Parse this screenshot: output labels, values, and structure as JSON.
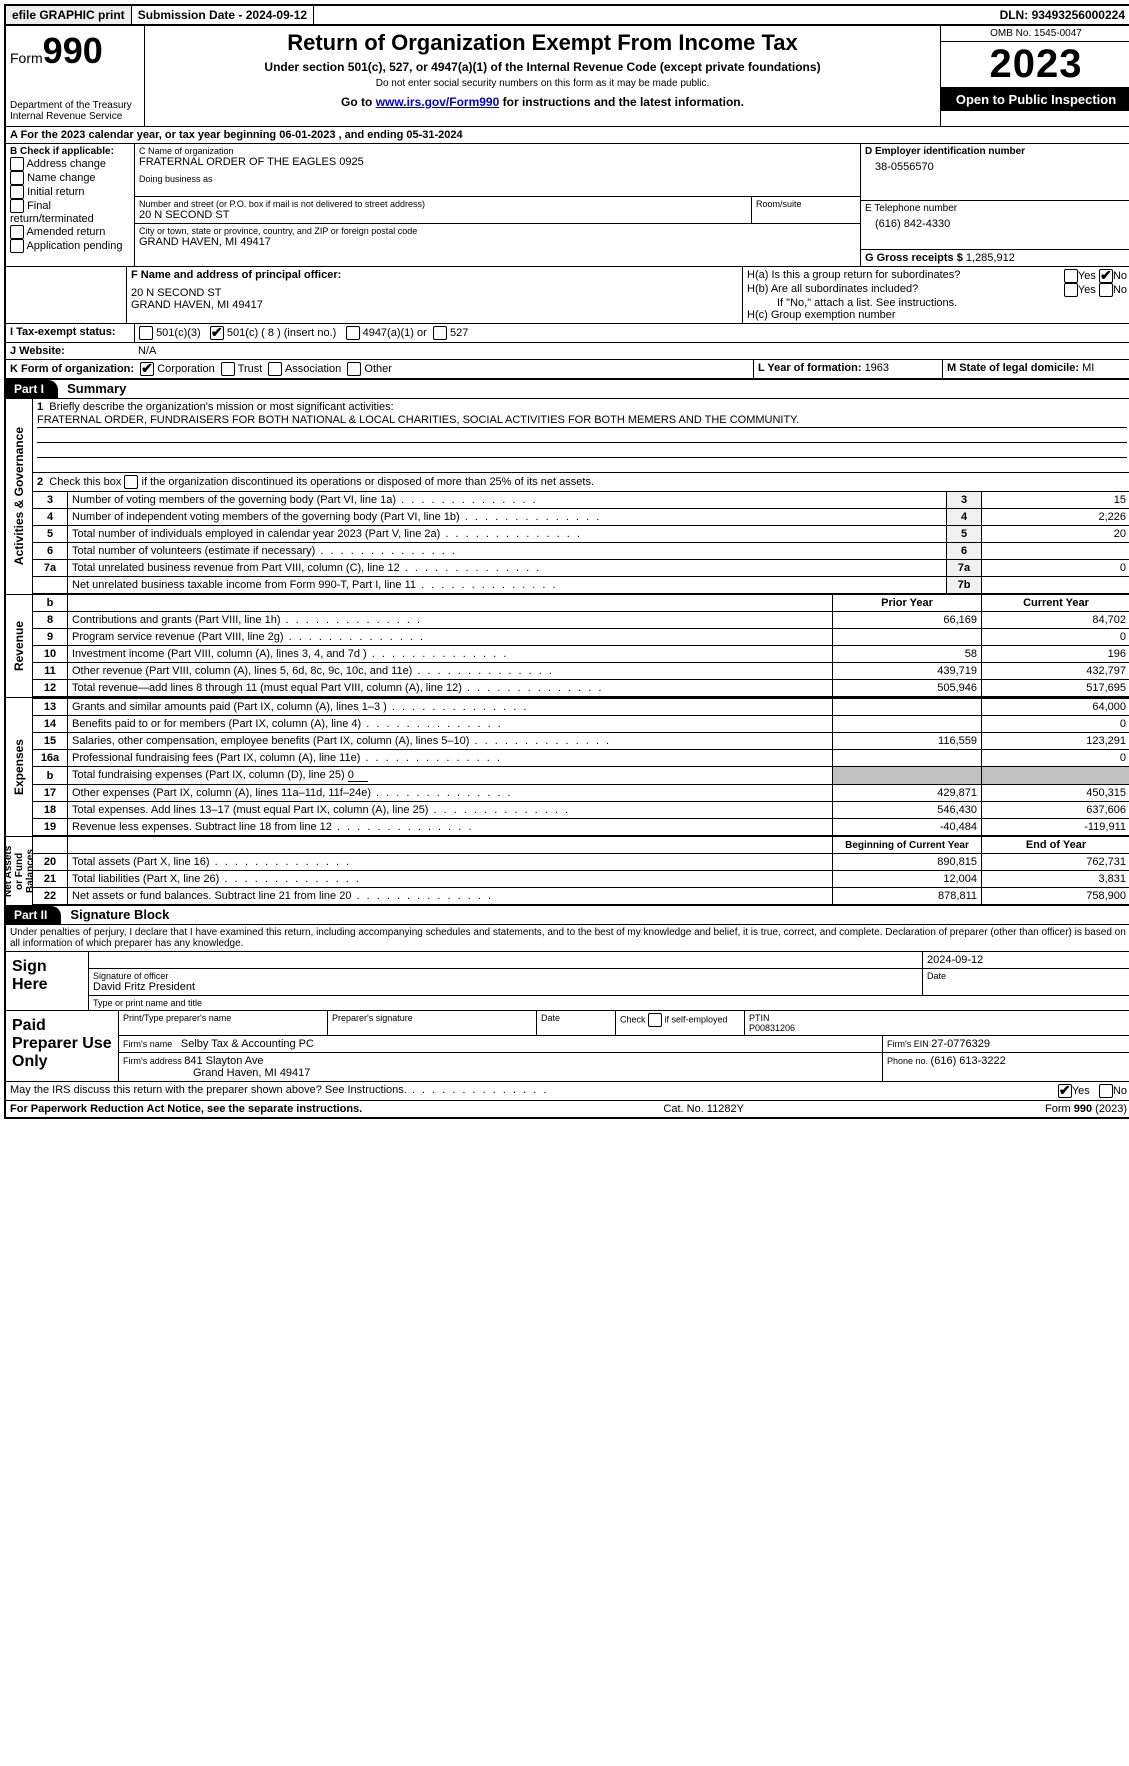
{
  "topbar": {
    "efile": "efile GRAPHIC print",
    "submission_label": "Submission Date - ",
    "submission_date": "2024-09-12",
    "dln_label": "DLN: ",
    "dln": "93493256000224"
  },
  "header": {
    "form_prefix": "Form",
    "form_number": "990",
    "dept1": "Department of the Treasury",
    "dept2": "Internal Revenue Service",
    "title": "Return of Organization Exempt From Income Tax",
    "subtitle": "Under section 501(c), 527, or 4947(a)(1) of the Internal Revenue Code (except private foundations)",
    "warn": "Do not enter social security numbers on this form as it may be made public.",
    "goto_pre": "Go to ",
    "goto_link": "www.irs.gov/Form990",
    "goto_post": " for instructions and the latest information.",
    "omb_label": "OMB No. ",
    "omb": "1545-0047",
    "year": "2023",
    "open": "Open to Public Inspection"
  },
  "sectionA": {
    "line": "A For the 2023 calendar year, or tax year beginning ",
    "begin": "06-01-2023",
    "mid": " , and ending ",
    "end": "05-31-2024"
  },
  "boxB": {
    "label": "B Check if applicable:",
    "opts": [
      "Address change",
      "Name change",
      "Initial return",
      "Final return/terminated",
      "Amended return",
      "Application pending"
    ]
  },
  "boxC": {
    "name_label": "C Name of organization",
    "name": "FRATERNAL ORDER OF THE EAGLES 0925",
    "dba_label": "Doing business as",
    "addr_label": "Number and street (or P.O. box if mail is not delivered to street address)",
    "room_label": "Room/suite",
    "addr": "20 N SECOND ST",
    "city_label": "City or town, state or province, country, and ZIP or foreign postal code",
    "city": "GRAND HAVEN, MI  49417"
  },
  "boxD": {
    "label": "D Employer identification number",
    "value": "38-0556570"
  },
  "boxE": {
    "label": "E Telephone number",
    "value": "(616) 842-4330"
  },
  "boxG": {
    "label": "G Gross receipts $ ",
    "value": "1,285,912"
  },
  "boxF": {
    "label": "F  Name and address of principal officer:",
    "line1": "20 N SECOND ST",
    "line2": "GRAND HAVEN, MI  49417"
  },
  "boxH": {
    "a": "H(a)  Is this a group return for subordinates?",
    "b": "H(b)  Are all subordinates included?",
    "bnote": "If \"No,\" attach a list. See instructions.",
    "c": "H(c)  Group exemption number ",
    "yes": "Yes",
    "no": "No"
  },
  "boxI": {
    "label": "I  Tax-exempt status:",
    "o1": "501(c)(3)",
    "o2": "501(c) ( 8 ) (insert no.)",
    "o3": "4947(a)(1) or",
    "o4": "527"
  },
  "boxJ": {
    "label": "J  Website:",
    "value": "N/A"
  },
  "boxK": {
    "label": "K Form of organization:",
    "opts": [
      "Corporation",
      "Trust",
      "Association",
      "Other"
    ]
  },
  "boxL": {
    "label": "L Year of formation: ",
    "value": "1963"
  },
  "boxM": {
    "label": "M State of legal domicile: ",
    "value": "MI"
  },
  "part1": {
    "hdr": "Part I",
    "title": "Summary",
    "side1": "Activities & Governance",
    "side2": "Revenue",
    "side3": "Expenses",
    "side4": "Net Assets or Fund Balances",
    "q1": "Briefly describe the organization's mission or most significant activities:",
    "q1ans": "FRATERNAL ORDER, FUNDRAISERS FOR BOTH NATIONAL & LOCAL CHARITIES, SOCIAL ACTIVITIES FOR BOTH MEMERS AND THE COMMUNITY.",
    "q2a": "Check this box ",
    "q2b": " if the organization discontinued its operations or disposed of more than 25% of its net assets.",
    "rows_gov": [
      {
        "n": "3",
        "t": "Number of voting members of the governing body (Part VI, line 1a)",
        "l": "3",
        "v": "15"
      },
      {
        "n": "4",
        "t": "Number of independent voting members of the governing body (Part VI, line 1b)",
        "l": "4",
        "v": "2,226"
      },
      {
        "n": "5",
        "t": "Total number of individuals employed in calendar year 2023 (Part V, line 2a)",
        "l": "5",
        "v": "20"
      },
      {
        "n": "6",
        "t": "Total number of volunteers (estimate if necessary)",
        "l": "6",
        "v": ""
      },
      {
        "n": "7a",
        "t": "Total unrelated business revenue from Part VIII, column (C), line 12",
        "l": "7a",
        "v": "0"
      },
      {
        "n": "",
        "t": "Net unrelated business taxable income from Form 990-T, Part I, line 11",
        "l": "7b",
        "v": ""
      }
    ],
    "col_b": "b",
    "col_prior": "Prior Year",
    "col_curr": "Current Year",
    "rows_rev": [
      {
        "n": "8",
        "t": "Contributions and grants (Part VIII, line 1h)",
        "p": "66,169",
        "c": "84,702"
      },
      {
        "n": "9",
        "t": "Program service revenue (Part VIII, line 2g)",
        "p": "",
        "c": "0"
      },
      {
        "n": "10",
        "t": "Investment income (Part VIII, column (A), lines 3, 4, and 7d )",
        "p": "58",
        "c": "196"
      },
      {
        "n": "11",
        "t": "Other revenue (Part VIII, column (A), lines 5, 6d, 8c, 9c, 10c, and 11e)",
        "p": "439,719",
        "c": "432,797"
      },
      {
        "n": "12",
        "t": "Total revenue—add lines 8 through 11 (must equal Part VIII, column (A), line 12)",
        "p": "505,946",
        "c": "517,695"
      }
    ],
    "rows_exp": [
      {
        "n": "13",
        "t": "Grants and similar amounts paid (Part IX, column (A), lines 1–3 )",
        "p": "",
        "c": "64,000"
      },
      {
        "n": "14",
        "t": "Benefits paid to or for members (Part IX, column (A), line 4)",
        "p": "",
        "c": "0"
      },
      {
        "n": "15",
        "t": "Salaries, other compensation, employee benefits (Part IX, column (A), lines 5–10)",
        "p": "116,559",
        "c": "123,291"
      },
      {
        "n": "16a",
        "t": "Professional fundraising fees (Part IX, column (A), line 11e)",
        "p": "",
        "c": "0"
      }
    ],
    "row16b_n": "b",
    "row16b_t": "Total fundraising expenses (Part IX, column (D), line 25) ",
    "row16b_v": "0",
    "rows_exp2": [
      {
        "n": "17",
        "t": "Other expenses (Part IX, column (A), lines 11a–11d, 11f–24e)",
        "p": "429,871",
        "c": "450,315"
      },
      {
        "n": "18",
        "t": "Total expenses. Add lines 13–17 (must equal Part IX, column (A), line 25)",
        "p": "546,430",
        "c": "637,606"
      },
      {
        "n": "19",
        "t": "Revenue less expenses. Subtract line 18 from line 12",
        "p": "-40,484",
        "c": "-119,911"
      }
    ],
    "col_begin": "Beginning of Current Year",
    "col_end": "End of Year",
    "rows_net": [
      {
        "n": "20",
        "t": "Total assets (Part X, line 16)",
        "p": "890,815",
        "c": "762,731"
      },
      {
        "n": "21",
        "t": "Total liabilities (Part X, line 26)",
        "p": "12,004",
        "c": "3,831"
      },
      {
        "n": "22",
        "t": "Net assets or fund balances. Subtract line 21 from line 20",
        "p": "878,811",
        "c": "758,900"
      }
    ]
  },
  "part2": {
    "hdr": "Part II",
    "title": "Signature Block",
    "decl": "Under penalties of perjury, I declare that I have examined this return, including accompanying schedules and statements, and to the best of my knowledge and belief, it is true, correct, and complete. Declaration of preparer (other than officer) is based on all information of which preparer has any knowledge.",
    "sign_here": "Sign Here",
    "sig_officer": "Signature of officer",
    "sig_date_val": "2024-09-12",
    "officer_name": "David Fritz  President",
    "type_name": "Type or print name and title",
    "date": "Date",
    "paid": "Paid Preparer Use Only",
    "prep_name_label": "Print/Type preparer's name",
    "prep_sig_label": "Preparer's signature",
    "check_self": "Check         if self-employed",
    "ptin_label": "PTIN",
    "ptin": "P00831206",
    "firm_name_label": "Firm's name  ",
    "firm_name": "Selby Tax & Accounting PC",
    "firm_ein_label": "Firm's EIN  ",
    "firm_ein": "27-0776329",
    "firm_addr_label": "Firm's address ",
    "firm_addr1": "841 Slayton Ave",
    "firm_addr2": "Grand Haven, MI  49417",
    "phone_label": "Phone no. ",
    "phone": "(616) 613-3222",
    "discuss": "May the IRS discuss this return with the preparer shown above? See Instructions.",
    "yes": "Yes",
    "no": "No"
  },
  "footer": {
    "left": "For Paperwork Reduction Act Notice, see the separate instructions.",
    "mid": "Cat. No. 11282Y",
    "right_pre": "Form ",
    "right_b": "990",
    "right_post": " (2023)"
  }
}
